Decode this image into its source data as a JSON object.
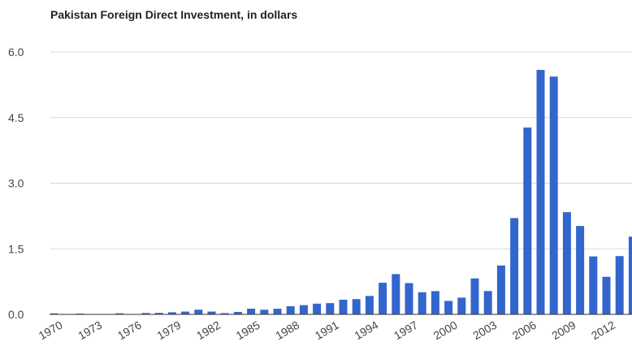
{
  "chart_data": {
    "type": "bar",
    "title": "Pakistan Foreign Direct Investment, in dollars",
    "categories": [
      "1970",
      null,
      null,
      "1973",
      null,
      null,
      "1976",
      null,
      null,
      "1979",
      null,
      null,
      "1982",
      null,
      null,
      "1985",
      null,
      null,
      "1988",
      null,
      null,
      "1991",
      null,
      null,
      "1994",
      null,
      null,
      "1997",
      null,
      null,
      "2000",
      null,
      null,
      "2003",
      null,
      null,
      "2006",
      null,
      null,
      "2009",
      null,
      null,
      "2012",
      null,
      null
    ],
    "values": [
      0.023,
      0.001,
      0.018,
      0.004,
      0.009,
      0.024,
      0.008,
      0.031,
      0.034,
      0.048,
      0.064,
      0.108,
      0.064,
      0.029,
      0.056,
      0.131,
      0.106,
      0.129,
      0.186,
      0.211,
      0.245,
      0.257,
      0.335,
      0.349,
      0.421,
      0.723,
      0.922,
      0.716,
      0.506,
      0.532,
      0.308,
      0.383,
      0.823,
      0.534,
      1.118,
      2.201,
      4.273,
      5.59,
      5.438,
      2.338,
      2.022,
      1.326,
      0.859,
      1.333,
      1.778
    ],
    "color": "#3366cc",
    "ylim": [
      0,
      6
    ],
    "yticks": [
      {
        "value": 0,
        "label": "0.0"
      },
      {
        "value": 1.5,
        "label": "1.5"
      },
      {
        "value": 3,
        "label": "3.0"
      },
      {
        "value": 4.5,
        "label": "4.5"
      },
      {
        "value": 6,
        "label": "6.0"
      }
    ],
    "grid": true
  }
}
